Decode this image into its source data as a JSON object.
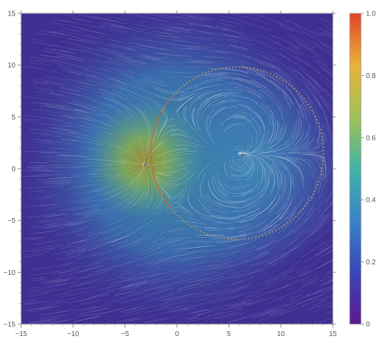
{
  "chart_data": {
    "type": "heatmap",
    "subtype": "density plot with stream lines",
    "title": "",
    "xlabel": "",
    "ylabel": "",
    "xlim": [
      -15,
      15
    ],
    "ylim": [
      -15,
      15
    ],
    "x_ticks": [
      -15,
      -10,
      -5,
      0,
      5,
      10,
      15
    ],
    "y_ticks": [
      -15,
      -10,
      -5,
      0,
      5,
      10,
      15
    ],
    "grid": false,
    "colorbar": {
      "range": [
        0,
        1.0
      ],
      "ticks": [
        0,
        0.2,
        0.4,
        0.6,
        0.8,
        1.0
      ],
      "tick_labels": [
        "0",
        "0.2",
        "0.4",
        "0.6",
        "0.8",
        "1.0"
      ],
      "colors": [
        "#5b1a8e",
        "#3b47b8",
        "#3a86c8",
        "#42b3a6",
        "#9cc25a",
        "#e9b23a",
        "#e2452b"
      ]
    },
    "features": {
      "dotted_circle": {
        "center": [
          5.8,
          1.5
        ],
        "radius": 8.3
      },
      "peak_region": {
        "x": -3.3,
        "y": 0.5,
        "value": 0.75
      }
    },
    "x_tick_labels": [
      "−15",
      "−10",
      "−5",
      "0",
      "5",
      "10",
      "15"
    ],
    "y_tick_labels": [
      "−15",
      "−10",
      "−5",
      "0",
      "5",
      "10",
      "15"
    ]
  }
}
